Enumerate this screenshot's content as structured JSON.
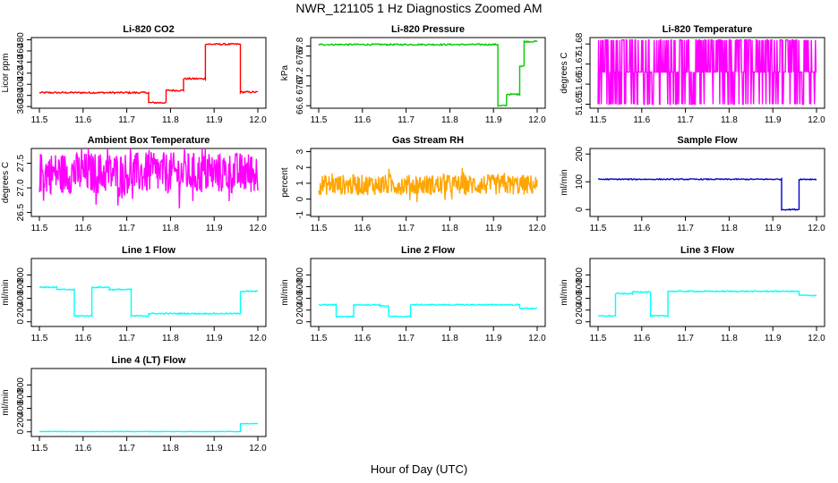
{
  "title": "NWR_121105  1 Hz Diagnostics Zoomed AM",
  "xlabel": "Hour of Day (UTC)",
  "chart_data": [
    {
      "type": "line",
      "title": "Li-820 CO2",
      "ylabel": "Licor ppm",
      "color": "#ff0000",
      "xlim": [
        11.5,
        12.0
      ],
      "xticks": [
        "11.5",
        "11.6",
        "11.7",
        "11.8",
        "11.9",
        "12.0"
      ],
      "ylim": [
        357,
        484
      ],
      "yticks": [
        "360",
        "380",
        "400",
        "420",
        "440",
        "460",
        "480"
      ],
      "noise": 1.5,
      "bands": [],
      "segments": [
        {
          "x": [
            11.5,
            11.75
          ],
          "y": 385
        },
        {
          "x": [
            11.75,
            11.79
          ],
          "y": 367
        },
        {
          "x": [
            11.79,
            11.83
          ],
          "y": 389
        },
        {
          "x": [
            11.83,
            11.88
          ],
          "y": 410
        },
        {
          "x": [
            11.88,
            11.96
          ],
          "y": 472
        },
        {
          "x": [
            11.96,
            12.0
          ],
          "y": 386
        }
      ]
    },
    {
      "type": "line",
      "title": "Li-820 Pressure",
      "ylabel": "kPa",
      "color": "#00cc00",
      "xlim": [
        11.5,
        12.0
      ],
      "xticks": [
        "11.5",
        "11.6",
        "11.7",
        "11.8",
        "11.9",
        "12.0"
      ],
      "ylim": [
        66.55,
        67.97
      ],
      "yticks": [
        "66.6",
        "67.0",
        "67.2",
        "67.6",
        "67.8"
      ],
      "noise": 0.015,
      "bands": [],
      "segments": [
        {
          "x": [
            11.5,
            11.91
          ],
          "y": 67.83
        },
        {
          "x": [
            11.91,
            11.93
          ],
          "y": 66.6
        },
        {
          "x": [
            11.93,
            11.96
          ],
          "y": 66.83
        },
        {
          "x": [
            11.96,
            11.97
          ],
          "y": 67.4
        },
        {
          "x": [
            11.97,
            12.0
          ],
          "y": 67.89
        }
      ]
    },
    {
      "type": "line",
      "title": "Li-820 Temperature",
      "ylabel": "degrees C",
      "color": "#ff00ff",
      "xlim": [
        11.5,
        12.0
      ],
      "xticks": [
        "11.5",
        "11.6",
        "11.7",
        "11.8",
        "11.9",
        "12.0"
      ],
      "ylim": [
        51.648,
        51.6832
      ],
      "yticks": [
        "51.65",
        "51.66",
        "51.67",
        "51.68"
      ],
      "noise": 0,
      "segments": [],
      "bands": [
        {
          "x": [
            11.5,
            12.0
          ],
          "low": 51.65,
          "mid": 51.666,
          "high": 51.682,
          "style": "toggle"
        }
      ]
    },
    {
      "type": "line",
      "title": "Ambient Box Temperature",
      "ylabel": "degrees C",
      "color": "#ff00ff",
      "xlim": [
        11.5,
        12.0
      ],
      "xticks": [
        "11.5",
        "11.6",
        "11.7",
        "11.8",
        "11.9",
        "12.0"
      ],
      "ylim": [
        26.42,
        27.8
      ],
      "yticks": [
        "26.5",
        "27.0",
        "27.5"
      ],
      "noise": 0,
      "segments": [],
      "bands": [
        {
          "x": [
            11.5,
            12.0
          ],
          "low": 26.85,
          "mid": 27.3,
          "high": 27.7,
          "style": "noise"
        }
      ]
    },
    {
      "type": "line",
      "title": "Gas Stream RH",
      "ylabel": "percent",
      "color": "#ffa500",
      "xlim": [
        11.5,
        12.0
      ],
      "xticks": [
        "11.5",
        "11.6",
        "11.7",
        "11.8",
        "11.9",
        "12.0"
      ],
      "ylim": [
        -1.1,
        3.2
      ],
      "yticks": [
        "-1",
        "0",
        "1",
        "2",
        "3"
      ],
      "noise": 0,
      "segments": [],
      "bands": [
        {
          "x": [
            11.5,
            12.0
          ],
          "low": 0.3,
          "mid": 0.9,
          "high": 1.6,
          "style": "noise"
        }
      ]
    },
    {
      "type": "line",
      "title": "Sample Flow",
      "ylabel": "ml/min",
      "color": "#0000cc",
      "xlim": [
        11.5,
        12.0
      ],
      "xticks": [
        "11.5",
        "11.6",
        "11.7",
        "11.8",
        "11.9",
        "12.0"
      ],
      "ylim": [
        -25,
        220
      ],
      "yticks": [
        "0",
        "100",
        "200"
      ],
      "noise": 2,
      "bands": [],
      "segments": [
        {
          "x": [
            11.5,
            11.92
          ],
          "y": 109
        },
        {
          "x": [
            11.92,
            11.96
          ],
          "y": 0
        },
        {
          "x": [
            11.96,
            12.0
          ],
          "y": 109
        }
      ]
    },
    {
      "type": "line",
      "title": "Line 1 Flow",
      "ylabel": "ml/min",
      "color": "#00ffff",
      "xlim": [
        11.5,
        12.0
      ],
      "xticks": [
        "11.5",
        "11.6",
        "11.7",
        "11.8",
        "11.9",
        "12.0"
      ],
      "ylim": [
        -80,
        1080
      ],
      "yticks": [
        "0",
        "200",
        "400",
        "600",
        "800"
      ],
      "noise": 10,
      "bands": [],
      "segments": [
        {
          "x": [
            11.5,
            11.54
          ],
          "y": 590
        },
        {
          "x": [
            11.54,
            11.58
          ],
          "y": 550
        },
        {
          "x": [
            11.58,
            11.62
          ],
          "y": 100
        },
        {
          "x": [
            11.62,
            11.66
          ],
          "y": 590
        },
        {
          "x": [
            11.66,
            11.71
          ],
          "y": 550
        },
        {
          "x": [
            11.71,
            11.75
          ],
          "y": 100
        },
        {
          "x": [
            11.75,
            11.96
          ],
          "y": 140
        },
        {
          "x": [
            11.96,
            12.0
          ],
          "y": 520
        }
      ]
    },
    {
      "type": "line",
      "title": "Line 2 Flow",
      "ylabel": "ml/min",
      "color": "#00ffff",
      "xlim": [
        11.5,
        12.0
      ],
      "xticks": [
        "11.5",
        "11.6",
        "11.7",
        "11.8",
        "11.9",
        "12.0"
      ],
      "ylim": [
        -80,
        1080
      ],
      "yticks": [
        "0",
        "200",
        "400",
        "600",
        "800"
      ],
      "noise": 10,
      "bands": [],
      "segments": [
        {
          "x": [
            11.5,
            11.54
          ],
          "y": 290
        },
        {
          "x": [
            11.54,
            11.58
          ],
          "y": 90
        },
        {
          "x": [
            11.58,
            11.64
          ],
          "y": 290
        },
        {
          "x": [
            11.64,
            11.66
          ],
          "y": 270
        },
        {
          "x": [
            11.66,
            11.71
          ],
          "y": 90
        },
        {
          "x": [
            11.71,
            11.96
          ],
          "y": 290
        },
        {
          "x": [
            11.96,
            12.0
          ],
          "y": 230
        }
      ]
    },
    {
      "type": "line",
      "title": "Line 3 Flow",
      "ylabel": "ml/min",
      "color": "#00ffff",
      "xlim": [
        11.5,
        12.0
      ],
      "xticks": [
        "11.5",
        "11.6",
        "11.7",
        "11.8",
        "11.9",
        "12.0"
      ],
      "ylim": [
        -80,
        1080
      ],
      "yticks": [
        "0",
        "200",
        "400",
        "600",
        "800"
      ],
      "noise": 10,
      "bands": [],
      "segments": [
        {
          "x": [
            11.5,
            11.54
          ],
          "y": 100
        },
        {
          "x": [
            11.54,
            11.58
          ],
          "y": 480
        },
        {
          "x": [
            11.58,
            11.62
          ],
          "y": 510
        },
        {
          "x": [
            11.62,
            11.66
          ],
          "y": 100
        },
        {
          "x": [
            11.66,
            11.96
          ],
          "y": 520
        },
        {
          "x": [
            11.96,
            12.0
          ],
          "y": 450
        }
      ]
    },
    {
      "type": "line",
      "title": "Line 4 (LT) Flow",
      "ylabel": "ml/min",
      "color": "#00ffff",
      "xlim": [
        11.5,
        12.0
      ],
      "xticks": [
        "11.5",
        "11.6",
        "11.7",
        "11.8",
        "11.9",
        "12.0"
      ],
      "ylim": [
        -80,
        1080
      ],
      "yticks": [
        "0",
        "200",
        "400",
        "600",
        "800"
      ],
      "noise": 4,
      "bands": [],
      "segments": [
        {
          "x": [
            11.5,
            11.96
          ],
          "y": 5
        },
        {
          "x": [
            11.96,
            12.0
          ],
          "y": 140
        }
      ]
    }
  ]
}
